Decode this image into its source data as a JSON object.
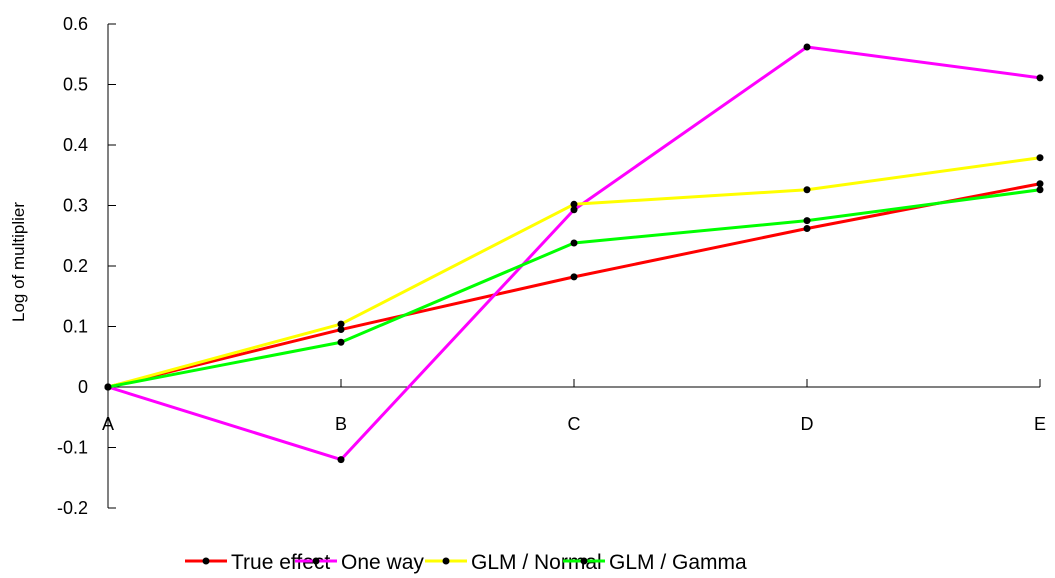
{
  "chart_data": {
    "type": "line",
    "title": "",
    "xlabel": "",
    "ylabel": "Log of multiplier",
    "categories": [
      "A",
      "B",
      "C",
      "D",
      "E"
    ],
    "ylim": [
      -0.2,
      0.6
    ],
    "yticks": [
      -0.2,
      -0.1,
      0,
      0.1,
      0.2,
      0.3,
      0.4,
      0.5,
      0.6
    ],
    "ytick_labels": [
      "-0.2",
      "-0.1",
      "0",
      "0.1",
      "0.2",
      "0.3",
      "0.4",
      "0.5",
      "0.6"
    ],
    "grid": false,
    "legend_position": "bottom",
    "marker_color": "#000000",
    "series": [
      {
        "name": "True effect",
        "color": "#ff0000",
        "values": [
          0,
          0.095,
          0.182,
          0.262,
          0.336
        ]
      },
      {
        "name": "One way",
        "color": "#ff00ff",
        "values": [
          0,
          -0.12,
          0.293,
          0.562,
          0.511
        ]
      },
      {
        "name": "GLM / Normal",
        "color": "#ffff00",
        "values": [
          0,
          0.104,
          0.302,
          0.326,
          0.379
        ]
      },
      {
        "name": "GLM / Gamma",
        "color": "#00ff00",
        "values": [
          0,
          0.074,
          0.238,
          0.275,
          0.326
        ]
      }
    ]
  }
}
